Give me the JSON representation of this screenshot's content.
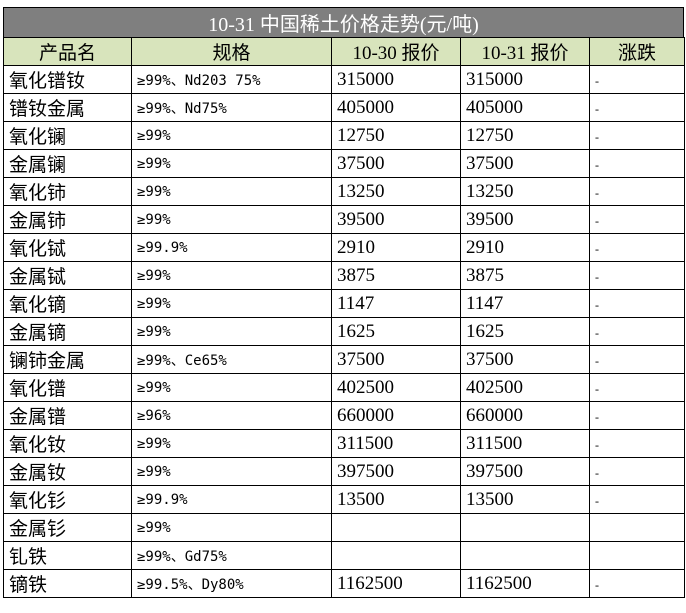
{
  "title": "10-31 中国稀土价格走势(元/吨)",
  "headers": [
    "产品名",
    "规格",
    "10-30 报价",
    "10-31 报价",
    "涨跌"
  ],
  "rows": [
    {
      "name": "氧化镨钕",
      "spec": "≥99%、Nd203 75%",
      "p1030": "315000",
      "p1031": "315000",
      "change": "-"
    },
    {
      "name": "镨钕金属",
      "spec": "≥99%、Nd75%",
      "p1030": "405000",
      "p1031": "405000",
      "change": "-"
    },
    {
      "name": "氧化镧",
      "spec": "≥99%",
      "p1030": "12750",
      "p1031": "12750",
      "change": "-"
    },
    {
      "name": "金属镧",
      "spec": "≥99%",
      "p1030": "37500",
      "p1031": "37500",
      "change": "-"
    },
    {
      "name": "氧化铈",
      "spec": "≥99%",
      "p1030": "13250",
      "p1031": "13250",
      "change": "-"
    },
    {
      "name": "金属铈",
      "spec": "≥99%",
      "p1030": "39500",
      "p1031": "39500",
      "change": "-"
    },
    {
      "name": "氧化铽",
      "spec": "≥99.9%",
      "p1030": "2910",
      "p1031": "2910",
      "change": "-"
    },
    {
      "name": "金属铽",
      "spec": "≥99%",
      "p1030": "3875",
      "p1031": "3875",
      "change": "-"
    },
    {
      "name": "氧化镝",
      "spec": "≥99%",
      "p1030": "1147",
      "p1031": "1147",
      "change": "-"
    },
    {
      "name": "金属镝",
      "spec": "≥99%",
      "p1030": "1625",
      "p1031": "1625",
      "change": "-"
    },
    {
      "name": "镧铈金属",
      "spec": "≥99%、Ce65%",
      "p1030": "37500",
      "p1031": "37500",
      "change": "-"
    },
    {
      "name": "氧化镨",
      "spec": "≥99%",
      "p1030": "402500",
      "p1031": "402500",
      "change": "-"
    },
    {
      "name": "金属镨",
      "spec": "≥96%",
      "p1030": "660000",
      "p1031": "660000",
      "change": "-"
    },
    {
      "name": "氧化钕",
      "spec": "≥99%",
      "p1030": "311500",
      "p1031": "311500",
      "change": "-"
    },
    {
      "name": "金属钕",
      "spec": "≥99%",
      "p1030": "397500",
      "p1031": "397500",
      "change": "-"
    },
    {
      "name": "氧化钐",
      "spec": "≥99.9%",
      "p1030": "13500",
      "p1031": "13500",
      "change": "-"
    },
    {
      "name": "金属钐",
      "spec": "≥99%",
      "p1030": "",
      "p1031": "",
      "change": ""
    },
    {
      "name": "钆铁",
      "spec": "≥99%、Gd75%",
      "p1030": "",
      "p1031": "",
      "change": ""
    },
    {
      "name": "镝铁",
      "spec": "≥99.5%、Dy80%",
      "p1030": "1162500",
      "p1031": "1162500",
      "change": "-"
    }
  ]
}
